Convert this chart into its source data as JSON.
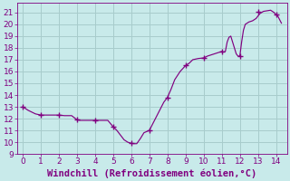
{
  "x": [
    0,
    0.3,
    0.7,
    1.0,
    1.3,
    1.7,
    2.0,
    2.3,
    2.7,
    3.0,
    3.15,
    3.3,
    3.5,
    3.7,
    4.0,
    4.3,
    4.7,
    5.0,
    5.2,
    5.4,
    5.6,
    5.8,
    6.0,
    6.15,
    6.3,
    6.5,
    6.7,
    7.0,
    7.2,
    7.5,
    7.8,
    8.0,
    8.2,
    8.4,
    8.7,
    9.0,
    9.2,
    9.4,
    9.7,
    10.0,
    10.2,
    10.4,
    10.6,
    10.8,
    11.0,
    11.1,
    11.2,
    11.3,
    11.4,
    11.5,
    11.6,
    11.7,
    11.8,
    11.85,
    11.9,
    12.0,
    12.1,
    12.2,
    12.3,
    12.5,
    12.7,
    12.9,
    13.0,
    13.1,
    13.2,
    13.3,
    13.5,
    13.7,
    13.9,
    14.0,
    14.1,
    14.2,
    14.3
  ],
  "y": [
    13.0,
    12.7,
    12.4,
    12.3,
    12.3,
    12.3,
    12.3,
    12.25,
    12.25,
    11.9,
    11.85,
    11.85,
    11.85,
    11.85,
    11.85,
    11.85,
    11.85,
    11.3,
    11.0,
    10.6,
    10.2,
    10.0,
    9.9,
    9.87,
    9.87,
    10.3,
    10.8,
    11.0,
    11.6,
    12.5,
    13.4,
    13.8,
    14.5,
    15.3,
    16.0,
    16.5,
    16.7,
    17.0,
    17.1,
    17.15,
    17.3,
    17.4,
    17.5,
    17.6,
    17.7,
    17.65,
    17.7,
    18.5,
    18.9,
    19.0,
    18.5,
    18.0,
    17.5,
    17.4,
    17.3,
    17.3,
    18.5,
    19.5,
    20.0,
    20.2,
    20.3,
    20.5,
    20.7,
    20.9,
    21.0,
    21.1,
    21.15,
    21.2,
    21.0,
    20.8,
    20.7,
    20.4,
    20.1
  ],
  "markers_x": [
    0,
    1,
    2,
    3,
    4,
    5,
    6,
    7,
    8,
    9,
    10,
    11,
    12,
    13,
    14
  ],
  "markers_y": [
    13.0,
    12.3,
    12.3,
    11.9,
    11.85,
    11.3,
    9.9,
    11.0,
    13.8,
    16.5,
    17.15,
    17.7,
    17.3,
    21.1,
    20.8
  ],
  "line_color": "#800080",
  "marker_color": "#800080",
  "bg_color": "#c8eaea",
  "grid_color": "#a8cccc",
  "axis_label_color": "#800080",
  "tick_color": "#800080",
  "xlim": [
    -0.3,
    14.6
  ],
  "ylim": [
    9.0,
    21.8
  ],
  "yticks": [
    9,
    10,
    11,
    12,
    13,
    14,
    15,
    16,
    17,
    18,
    19,
    20,
    21
  ],
  "xticks": [
    0,
    1,
    2,
    3,
    4,
    5,
    6,
    7,
    8,
    9,
    10,
    11,
    12,
    13,
    14
  ],
  "xlabel": "Windchill (Refroidissement éolien,°C)",
  "xlabel_fontsize": 7.5
}
